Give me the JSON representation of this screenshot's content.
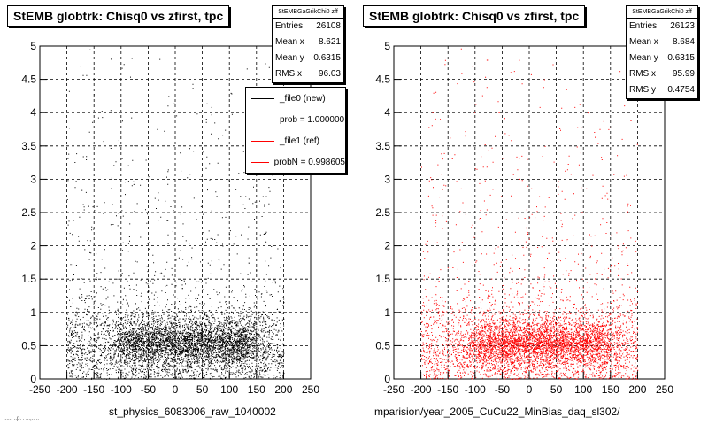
{
  "chart_data": [
    {
      "type": "scatter",
      "title": "StEMB globtrk: Chisq0 vs zfirst, tpc",
      "xlabel": "st_physics_6083006_raw_1040002",
      "xlim": [
        -250,
        250
      ],
      "ylim": [
        0,
        5
      ],
      "xticks": [
        "-250",
        "-200",
        "-150",
        "-100",
        "-50",
        "0",
        "50",
        "100",
        "150",
        "200",
        "250"
      ],
      "yticks": [
        "0",
        "0.5",
        "1",
        "1.5",
        "2",
        "2.5",
        "3",
        "3.5",
        "4",
        "4.5",
        "5"
      ],
      "grid": true,
      "color": "#000000",
      "point_count_drawn": 6000,
      "density": {
        "core_x": [
          -100,
          150
        ],
        "core_y": [
          0.3,
          0.8
        ],
        "x_range": [
          -200,
          200
        ]
      },
      "stats": {
        "header": "StEMBGaGrikChi0 zff",
        "rows": [
          {
            "label": "Entries",
            "value": "26108"
          },
          {
            "label": "Mean x",
            "value": "8.621"
          },
          {
            "label": "Mean y",
            "value": "0.6315"
          },
          {
            "label": "RMS x",
            "value": "96.03"
          }
        ]
      },
      "legend": [
        {
          "label": "_file0 (new)",
          "color": "#000000"
        },
        {
          "label": "prob = 1.000000",
          "color": "#000000"
        },
        {
          "label": "_file1 (ref)",
          "color": "#ff0000"
        },
        {
          "label": "probN = 0.998605",
          "color": "#ff0000"
        }
      ]
    },
    {
      "type": "scatter",
      "title": "StEMB globtrk: Chisq0 vs zfirst, tpc",
      "xlabel": "mparision/year_2005_CuCu22_MinBias_daq_sl302/",
      "xlim": [
        -250,
        250
      ],
      "ylim": [
        0,
        5
      ],
      "xticks": [
        "-250",
        "-200",
        "-150",
        "-100",
        "-50",
        "0",
        "50",
        "100",
        "150",
        "200",
        "250"
      ],
      "yticks": [
        "0",
        "0.5",
        "1",
        "1.5",
        "2",
        "2.5",
        "3",
        "3.5",
        "4",
        "4.5",
        "5"
      ],
      "grid": true,
      "color": "#ff0000",
      "point_count_drawn": 6000,
      "density": {
        "core_x": [
          -100,
          150
        ],
        "core_y": [
          0.3,
          0.8
        ],
        "x_range": [
          -200,
          200
        ]
      },
      "stats": {
        "header": "StEMBGaGrikChi0 zff",
        "rows": [
          {
            "label": "Entries",
            "value": "26123"
          },
          {
            "label": "Mean x",
            "value": "8.684"
          },
          {
            "label": "Mean y",
            "value": "0.6315"
          },
          {
            "label": "RMS x",
            "value": "95.99"
          },
          {
            "label": "RMS y",
            "value": "0.4754"
          }
        ]
      }
    }
  ],
  "footer_text": "...... ..p. . ...,.. .."
}
